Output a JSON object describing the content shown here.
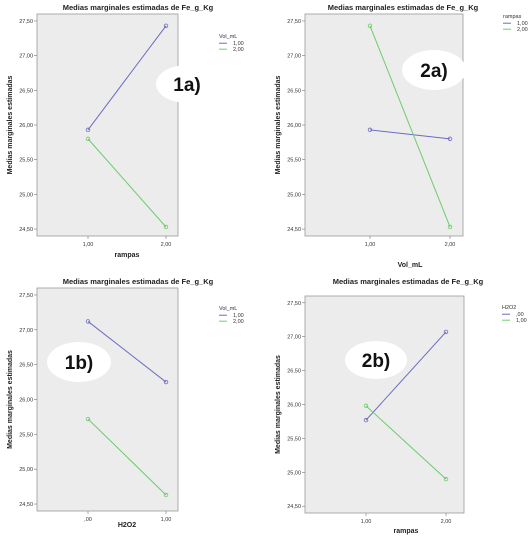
{
  "chart_data": [
    {
      "type": "line",
      "title": "Medias marginales estimadas de Fe_g_Kg",
      "xlabel": "rampas",
      "ylabel": "Medias marginales estimadas",
      "categories": [
        "1,00",
        "2,00"
      ],
      "ylim": [
        24.4,
        27.6
      ],
      "yticks": [
        "24,50",
        "25,00",
        "25,50",
        "26,00",
        "26,50",
        "27,00",
        "27,50"
      ],
      "ytick_values": [
        24.5,
        25.0,
        25.5,
        26.0,
        26.5,
        27.0,
        27.5
      ],
      "legend_title": "Vol_mL",
      "legend_position": "top-right",
      "series": [
        {
          "name": "1,00",
          "values": [
            25.93,
            27.43
          ],
          "color": "#6b6bc4"
        },
        {
          "name": "2,00",
          "values": [
            25.8,
            24.53
          ],
          "color": "#6ccc6c"
        }
      ],
      "badge": "1a)"
    },
    {
      "type": "line",
      "title": "Medias marginales estimadas de Fe_g_Kg",
      "xlabel": "Vol_mL",
      "ylabel": "Medias marginales estimadas",
      "categories": [
        "1,00",
        "2,00"
      ],
      "ylim": [
        24.4,
        27.6
      ],
      "yticks": [
        "24,50",
        "25,00",
        "25,50",
        "26,00",
        "26,50",
        "27,00",
        "27,50"
      ],
      "ytick_values": [
        24.5,
        25.0,
        25.5,
        26.0,
        26.5,
        27.0,
        27.5
      ],
      "legend_title": "rampas",
      "legend_position": "top-right",
      "series": [
        {
          "name": "1,00",
          "values": [
            25.93,
            25.8
          ],
          "color": "#6b6bc4"
        },
        {
          "name": "2,00",
          "values": [
            27.43,
            24.53
          ],
          "color": "#6ccc6c"
        }
      ],
      "badge": "2a)"
    },
    {
      "type": "line",
      "title": "Medias marginales estimadas de Fe_g_Kg",
      "xlabel": "H2O2",
      "ylabel": "Medias marginales estimadas",
      "categories": [
        ",00",
        "1,00"
      ],
      "ylim": [
        24.4,
        27.6
      ],
      "yticks": [
        "24,50",
        "25,00",
        "25,50",
        "26,00",
        "26,50",
        "27,00",
        "27,50"
      ],
      "ytick_values": [
        24.5,
        25.0,
        25.5,
        26.0,
        26.5,
        27.0,
        27.5
      ],
      "legend_title": "Vol_mL",
      "legend_position": "top-right",
      "series": [
        {
          "name": "1,00",
          "values": [
            27.12,
            26.25
          ],
          "color": "#6b6bc4"
        },
        {
          "name": "2,00",
          "values": [
            25.72,
            24.63
          ],
          "color": "#6ccc6c"
        }
      ],
      "badge": "1b)"
    },
    {
      "type": "line",
      "title": "Medias marginales estimadas de Fe_g_Kg",
      "xlabel": "rampas",
      "ylabel": "Medias marginales estimadas",
      "categories": [
        "1,00",
        "2,00"
      ],
      "ylim": [
        24.4,
        27.6
      ],
      "yticks": [
        "24,50",
        "25,00",
        "25,50",
        "26,00",
        "26,50",
        "27,00",
        "27,50"
      ],
      "ytick_values": [
        24.5,
        25.0,
        25.5,
        26.0,
        26.5,
        27.0,
        27.5
      ],
      "legend_title": "H2O2",
      "legend_position": "top-right",
      "series": [
        {
          "name": ",00",
          "values": [
            25.77,
            27.07
          ],
          "color": "#6b6bc4"
        },
        {
          "name": "1,00",
          "values": [
            25.98,
            24.9
          ],
          "color": "#6ccc6c"
        }
      ],
      "badge": "2b)"
    }
  ]
}
